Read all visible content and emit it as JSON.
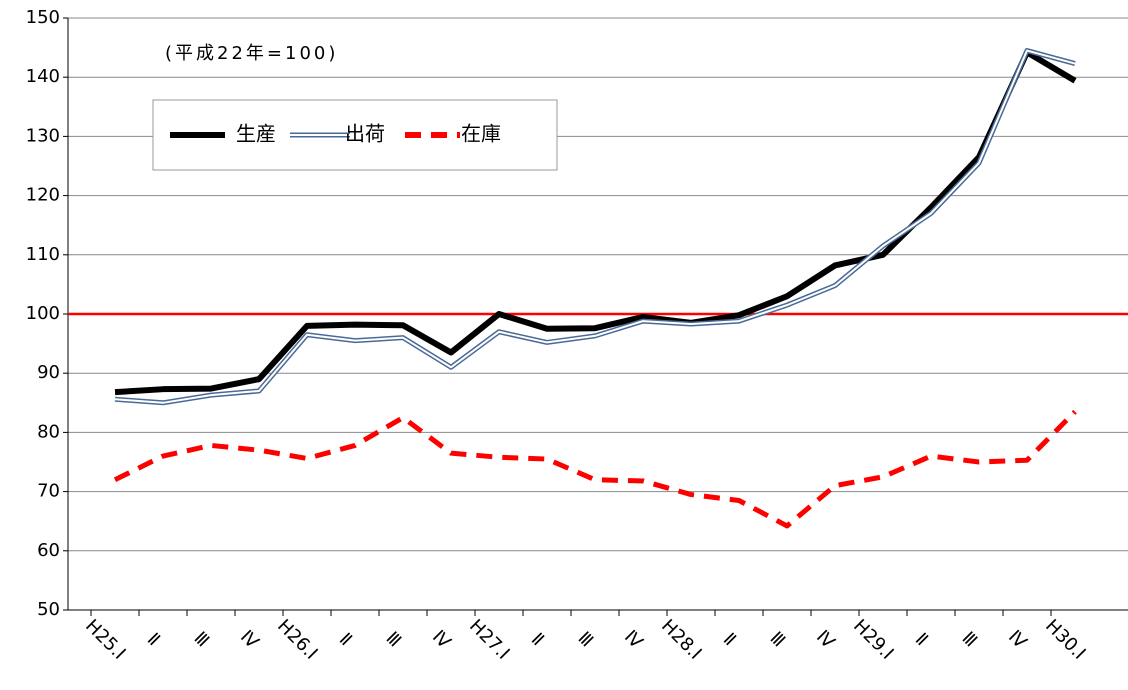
{
  "chart_data": {
    "type": "line",
    "annotation": "(平成22年=100)",
    "categories": [
      "H25.Ⅰ",
      "Ⅱ",
      "Ⅲ",
      "Ⅳ",
      "H26.Ⅰ",
      "Ⅱ",
      "Ⅲ",
      "Ⅳ",
      "H27.Ⅰ",
      "Ⅱ",
      "Ⅲ",
      "Ⅳ",
      "H28.Ⅰ",
      "Ⅱ",
      "Ⅲ",
      "Ⅳ",
      "H29.Ⅰ",
      "Ⅱ",
      "Ⅲ",
      "Ⅳ",
      "H30.Ⅰ"
    ],
    "series": [
      {
        "name": "生産",
        "color": "#000000",
        "style": "solid",
        "values": [
          86.8,
          87.3,
          87.4,
          89.0,
          98.0,
          98.2,
          98.1,
          93.5,
          100.0,
          97.5,
          97.6,
          99.5,
          98.5,
          99.8,
          103.0,
          108.2,
          110.0,
          118.0,
          126.5,
          144.2,
          139.4
        ]
      },
      {
        "name": "出荷",
        "color": "#4a6a96",
        "style": "double",
        "values": [
          85.6,
          85.0,
          86.3,
          87.0,
          96.5,
          95.5,
          96.0,
          91.0,
          97.0,
          95.2,
          96.3,
          98.8,
          98.3,
          98.8,
          101.5,
          104.8,
          111.5,
          117.0,
          125.5,
          144.5,
          142.3
        ]
      },
      {
        "name": "在庫",
        "color": "#ff0000",
        "style": "dashed",
        "values": [
          72.0,
          76.0,
          77.8,
          77.0,
          75.6,
          77.8,
          82.5,
          76.5,
          75.8,
          75.5,
          72.0,
          71.8,
          69.5,
          68.5,
          64.2,
          71.0,
          72.5,
          76.0,
          75.0,
          75.3,
          83.5
        ]
      }
    ],
    "ylim": [
      50,
      150
    ],
    "yticks": [
      50,
      60,
      70,
      80,
      90,
      100,
      110,
      120,
      130,
      140,
      150
    ],
    "grid": true,
    "reference_line": {
      "value": 100,
      "color": "#ff0000"
    }
  }
}
